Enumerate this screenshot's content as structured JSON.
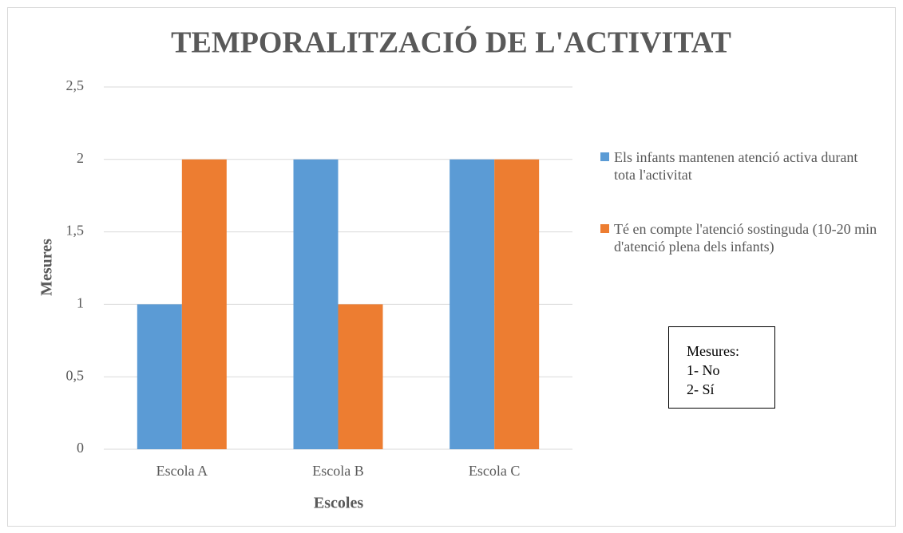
{
  "chart_data": {
    "type": "bar",
    "title": "TEMPORALITZACIÓ DE L'ACTIVITAT",
    "x_label": "Escoles",
    "y_label": "Mesures",
    "categories": [
      "Escola A",
      "Escola B",
      "Escola C"
    ],
    "series": [
      {
        "name": "Els infants mantenen atenció activa durant tota l'activitat",
        "color": "#5b9bd5",
        "values": [
          1,
          2,
          2
        ]
      },
      {
        "name": "Té en compte l'atenció sostinguda (10-20 min d'atenció plena dels infants)",
        "color": "#ed7d31",
        "values": [
          2,
          1,
          2
        ]
      }
    ],
    "ylim": [
      0,
      2.5
    ],
    "yticks": [
      0,
      {
        "value": 0.5,
        "label": "0,5"
      },
      1,
      {
        "value": 1.5,
        "label": "1,5"
      },
      2,
      {
        "value": 2.5,
        "label": "2,5"
      }
    ],
    "grid": true,
    "legend": "right",
    "annotation": [
      "Mesures:",
      "1- No",
      "2- Sí"
    ]
  }
}
